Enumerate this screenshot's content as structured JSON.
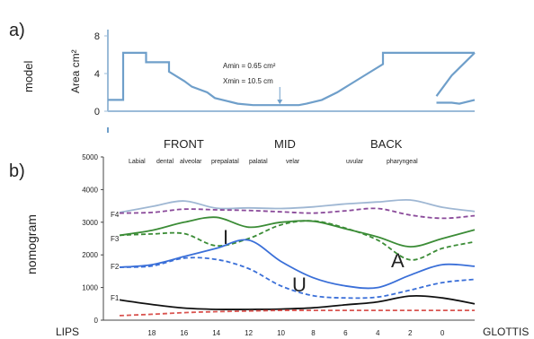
{
  "chart_data": [
    {
      "type": "line",
      "panel_label": "a)",
      "side_label": "model",
      "ylabel": "Area cm²",
      "y_ticks": [
        "0",
        "4",
        "8"
      ],
      "ylim": [
        0,
        8
      ],
      "annotations": [
        "Amin = 0.65 cm²",
        "Xmin = 10.5 cm"
      ],
      "series": [
        {
          "color": "#6f9fca",
          "x": [
            0,
            2,
            2,
            5,
            5,
            8,
            8,
            10,
            11,
            13,
            14,
            16,
            17,
            19,
            20,
            25,
            26,
            28,
            30,
            32,
            34,
            36,
            36,
            40,
            40,
            45,
            47,
            48
          ],
          "y": [
            1.2,
            1.2,
            6.2,
            6.2,
            5.2,
            5.2,
            4.2,
            3.2,
            2.6,
            2.0,
            1.4,
            1.0,
            0.8,
            0.65,
            0.65,
            0.65,
            0.8,
            1.2,
            2.0,
            3.0,
            4.0,
            5.0,
            6.2,
            6.2,
            6.2,
            6.2,
            6.2,
            6.2
          ]
        },
        {
          "color": "#6f9fca",
          "x": [
            43,
            45,
            46,
            47,
            48
          ],
          "y": [
            1.6,
            3.8,
            4.6,
            5.4,
            6.2
          ]
        },
        {
          "color": "#6f9fca",
          "x": [
            43,
            45,
            46,
            48
          ],
          "y": [
            0.9,
            0.9,
            0.8,
            1.2
          ]
        }
      ]
    },
    {
      "type": "line",
      "panel_label": "b)",
      "side_label": "nomogram",
      "region_labels": [
        "FRONT",
        "MID",
        "BACK"
      ],
      "place_labels": [
        "Labial",
        "dental",
        "alveolar",
        "prepalatal",
        "palatal",
        "velar",
        "uvular",
        "pharyngeal"
      ],
      "y_ticks": [
        "0",
        "1000",
        "2000",
        "3000",
        "4000",
        "5000"
      ],
      "ylim": [
        0,
        5000
      ],
      "x_ticks": [
        "18",
        "16",
        "14",
        "12",
        "10",
        "8",
        "6",
        "4",
        "2",
        "0"
      ],
      "xlim": [
        21,
        -2
      ],
      "x_end_labels": [
        "LIPS",
        "GLOTTIS"
      ],
      "formant_labels": [
        "F4",
        "F3",
        "F2",
        "F1"
      ],
      "vowel_labels": [
        "I",
        "U",
        "A"
      ],
      "series": [
        {
          "color": "#9fb7d3",
          "style": "solid",
          "x": [
            20,
            18,
            16,
            14,
            12,
            10,
            8,
            6,
            4,
            2,
            0,
            -2
          ],
          "y": [
            3300,
            3480,
            3650,
            3430,
            3440,
            3420,
            3470,
            3560,
            3620,
            3680,
            3460,
            3330
          ]
        },
        {
          "color": "#8a4a9a",
          "style": "dashed",
          "x": [
            20,
            18,
            16,
            14,
            12,
            10,
            8,
            6,
            4,
            2,
            0,
            -2
          ],
          "y": [
            3280,
            3300,
            3400,
            3380,
            3360,
            3320,
            3280,
            3350,
            3420,
            3220,
            3120,
            3200
          ]
        },
        {
          "color": "#3b8c36",
          "style": "solid",
          "x": [
            20,
            18,
            16,
            14,
            12,
            10,
            8,
            6,
            4,
            2,
            0,
            -2
          ],
          "y": [
            2600,
            2750,
            3000,
            3150,
            2850,
            3000,
            3030,
            2800,
            2550,
            2250,
            2500,
            2770
          ]
        },
        {
          "color": "#3b8c36",
          "style": "dashed",
          "x": [
            20,
            18,
            16,
            14,
            12,
            10,
            8,
            6,
            4,
            2,
            0,
            -2
          ],
          "y": [
            2600,
            2640,
            2650,
            2280,
            2500,
            2920,
            3040,
            2820,
            2450,
            1850,
            2200,
            2400
          ]
        },
        {
          "color": "#3a6fd8",
          "style": "solid",
          "x": [
            20,
            18,
            16,
            14,
            12,
            10,
            8,
            6,
            4,
            2,
            0,
            -2
          ],
          "y": [
            1620,
            1700,
            1950,
            2200,
            2450,
            1800,
            1300,
            1050,
            1000,
            1380,
            1700,
            1650
          ]
        },
        {
          "color": "#3a6fd8",
          "style": "dashed",
          "x": [
            20,
            18,
            16,
            14,
            12,
            10,
            8,
            6,
            4,
            2,
            0,
            -2
          ],
          "y": [
            1620,
            1660,
            1900,
            1860,
            1580,
            1050,
            750,
            680,
            710,
            920,
            1150,
            1250
          ]
        },
        {
          "color": "#111111",
          "style": "solid",
          "x": [
            20,
            18,
            16,
            14,
            12,
            10,
            8,
            6,
            4,
            2,
            0,
            -2
          ],
          "y": [
            620,
            480,
            370,
            330,
            330,
            340,
            380,
            470,
            560,
            740,
            680,
            500
          ]
        },
        {
          "color": "#d9534f",
          "style": "dashed",
          "x": [
            20,
            18,
            16,
            14,
            12,
            10,
            8,
            6,
            4,
            2,
            0,
            -2
          ],
          "y": [
            140,
            180,
            230,
            260,
            280,
            300,
            300,
            300,
            300,
            300,
            300,
            300
          ]
        }
      ]
    }
  ]
}
